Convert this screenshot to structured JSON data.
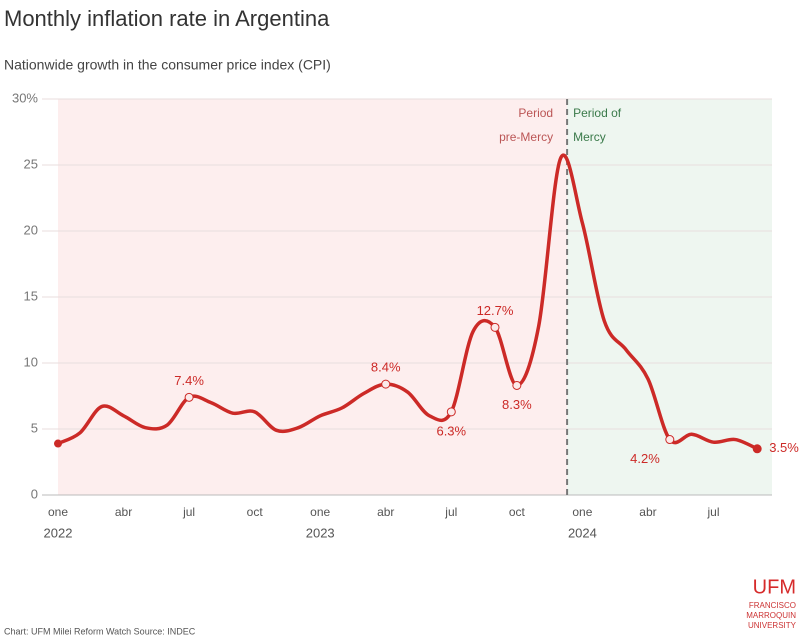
{
  "chart_data": {
    "type": "line",
    "title": "Monthly inflation rate in Argentina",
    "subtitle": "Nationwide growth in the consumer price index (CPI)",
    "categories": [
      "one",
      null,
      null,
      "abr",
      null,
      null,
      "jul",
      null,
      null,
      "oct",
      null,
      null,
      "one",
      null,
      null,
      "abr",
      null,
      null,
      "jul",
      null,
      null,
      "oct",
      null,
      null,
      "one",
      null,
      null,
      "abr",
      null,
      null,
      "jul",
      null,
      null
    ],
    "years": [
      "2022",
      "2023",
      "2024"
    ],
    "series": [
      {
        "name": "Monthly inflation",
        "color": "#cc2a27",
        "values": [
          3.9,
          4.7,
          6.7,
          6.0,
          5.1,
          5.3,
          7.4,
          7.0,
          6.2,
          6.3,
          4.9,
          5.1,
          6.0,
          6.6,
          7.7,
          8.4,
          7.8,
          6.0,
          6.3,
          12.4,
          12.7,
          8.3,
          12.8,
          25.5,
          20.6,
          13.2,
          11.0,
          8.8,
          4.2,
          4.6,
          4.0,
          4.2,
          3.5
        ],
        "value_labels": [
          null,
          null,
          null,
          null,
          null,
          null,
          "7.4%",
          null,
          null,
          null,
          null,
          null,
          null,
          null,
          null,
          "8.4%",
          null,
          null,
          "6.3%",
          null,
          "12.7%",
          "8.3%",
          null,
          null,
          null,
          null,
          null,
          null,
          "4.2%",
          null,
          null,
          null,
          "3.5%"
        ]
      }
    ],
    "ylim": [
      0,
      30
    ],
    "yticks": [
      0,
      5,
      10,
      15,
      20,
      25,
      {
        "value": 30,
        "label": "30%"
      }
    ],
    "grid": true,
    "annotations": {
      "pre": [
        "Period",
        "pre-Mercy"
      ],
      "post": [
        "Period of",
        "Mercy"
      ]
    },
    "source": "Chart: UFM Milei Reform Watch Source: INDEC",
    "logo": {
      "name": "UFM",
      "lines": [
        "FRANCISCO",
        "MARROQUIN",
        "UNIVERSITY"
      ]
    }
  }
}
